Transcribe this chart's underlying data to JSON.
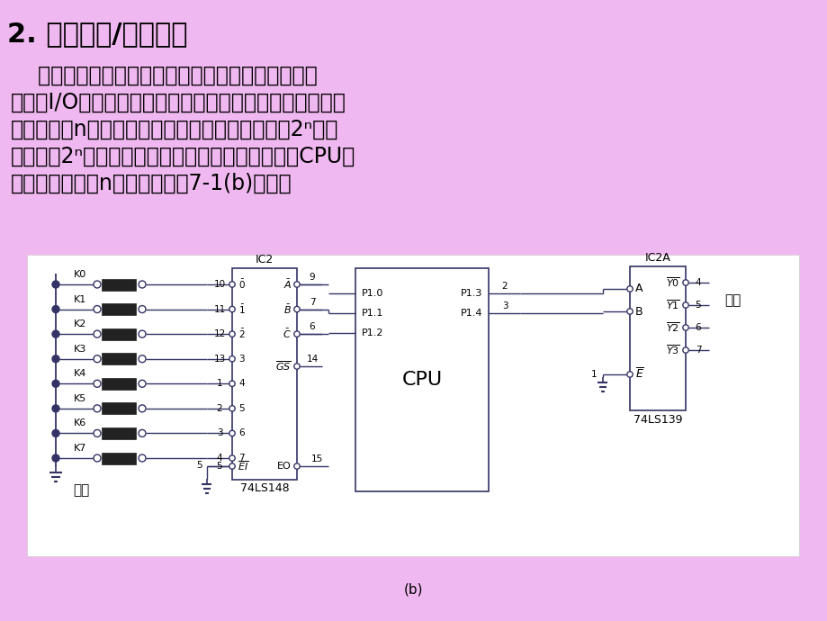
{
  "bg_color": "#f0b8f0",
  "title": "2. 编码输入/输出方式",
  "body_lines": [
    "    在这种方式中，将若干条用途相同（均为输入或输",
    "出）的I/O引脚组合在一起，按二进制编码后输入或输出。",
    "例如，对于n条输出引脚，经过译码后，可以控制2ⁿ个设",
    "备；对于2ⁿ个不同时有效的输入量，经过编码器与CPU连",
    "接时，也只需要n个引脚，如图7-1(b)所示。"
  ],
  "diagram_label": "(b)"
}
